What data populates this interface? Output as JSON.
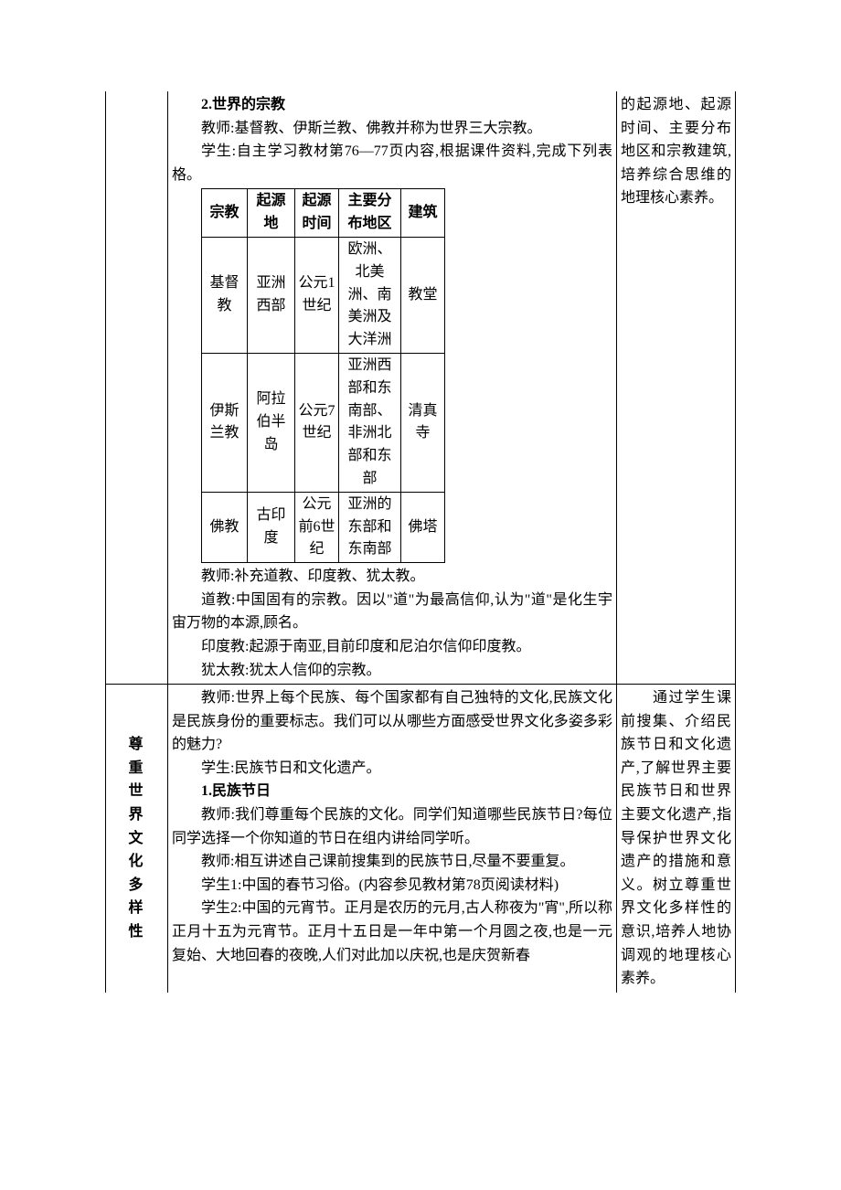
{
  "row1": {
    "content": {
      "h1": "2.世界的宗教",
      "p1": "教师:基督教、伊斯兰教、佛教并称为世界三大宗教。",
      "p2": "学生:自主学习教材第76—77页内容,根据课件资料,完成下列表格。",
      "table": {
        "headers": [
          "宗教",
          "起源地",
          "起源时间",
          "主要分布地区",
          "建筑"
        ],
        "rows": [
          [
            "基督教",
            "亚洲西部",
            "公元1世纪",
            "欧洲、北美洲、南美洲及大洋洲",
            "教堂"
          ],
          [
            "伊斯兰教",
            "阿拉伯半岛",
            "公元7世纪",
            "亚洲西部和东南部、非洲北部和东部",
            "清真寺"
          ],
          [
            "佛教",
            "古印度",
            "公元前6世纪",
            "亚洲的东部和东南部",
            "佛塔"
          ]
        ]
      },
      "p3": "教师:补充道教、印度教、犹太教。",
      "p4": "道教:中国固有的宗教。因以\"道\"为最高信仰,认为\"道\"是化生宇宙万物的本源,顾名。",
      "p5": "印度教:起源于南亚,目前印度和尼泊尔信仰印度教。",
      "p6": "犹太教:犹太人信仰的宗教。"
    },
    "note": "的起源地、起源时间、主要分布地区和宗教建筑,培养综合思维的地理核心素养。"
  },
  "row2": {
    "label": "尊重世界文化多样性",
    "content": {
      "p1": "教师:世界上每个民族、每个国家都有自己独特的文化,民族文化是民族身份的重要标志。我们可以从哪些方面感受世界文化多姿多彩的魅力?",
      "p2": "学生:民族节日和文化遗产。",
      "h1": "1.民族节日",
      "p3": "教师:我们尊重每个民族的文化。同学们知道哪些民族节日?每位同学选择一个你知道的节日在组内讲给同学听。",
      "p4": "教师:相互讲述自己课前搜集到的民族节日,尽量不要重复。",
      "p5": "学生1:中国的春节习俗。(内容参见教材第78页阅读材料)",
      "p6": "学生2:中国的元宵节。正月是农历的元月,古人称夜为\"宵\",所以称正月十五为元宵节。正月十五日是一年中第一个月圆之夜,也是一元复始、大地回春的夜晚,人们对此加以庆祝,也是庆贺新春"
    },
    "note": "　　通过学生课前搜集、介绍民族节日和文化遗产,了解世界主要民族节日和世界主要文化遗产,指导保护世界文化遗产的措施和意义。树立尊重世界文化多样性的意识,培养人地协调观的地理核心素养。"
  },
  "colw": {
    "c0": "50",
    "c1": "52",
    "c2": "48",
    "c3": "68",
    "c4": "48"
  }
}
